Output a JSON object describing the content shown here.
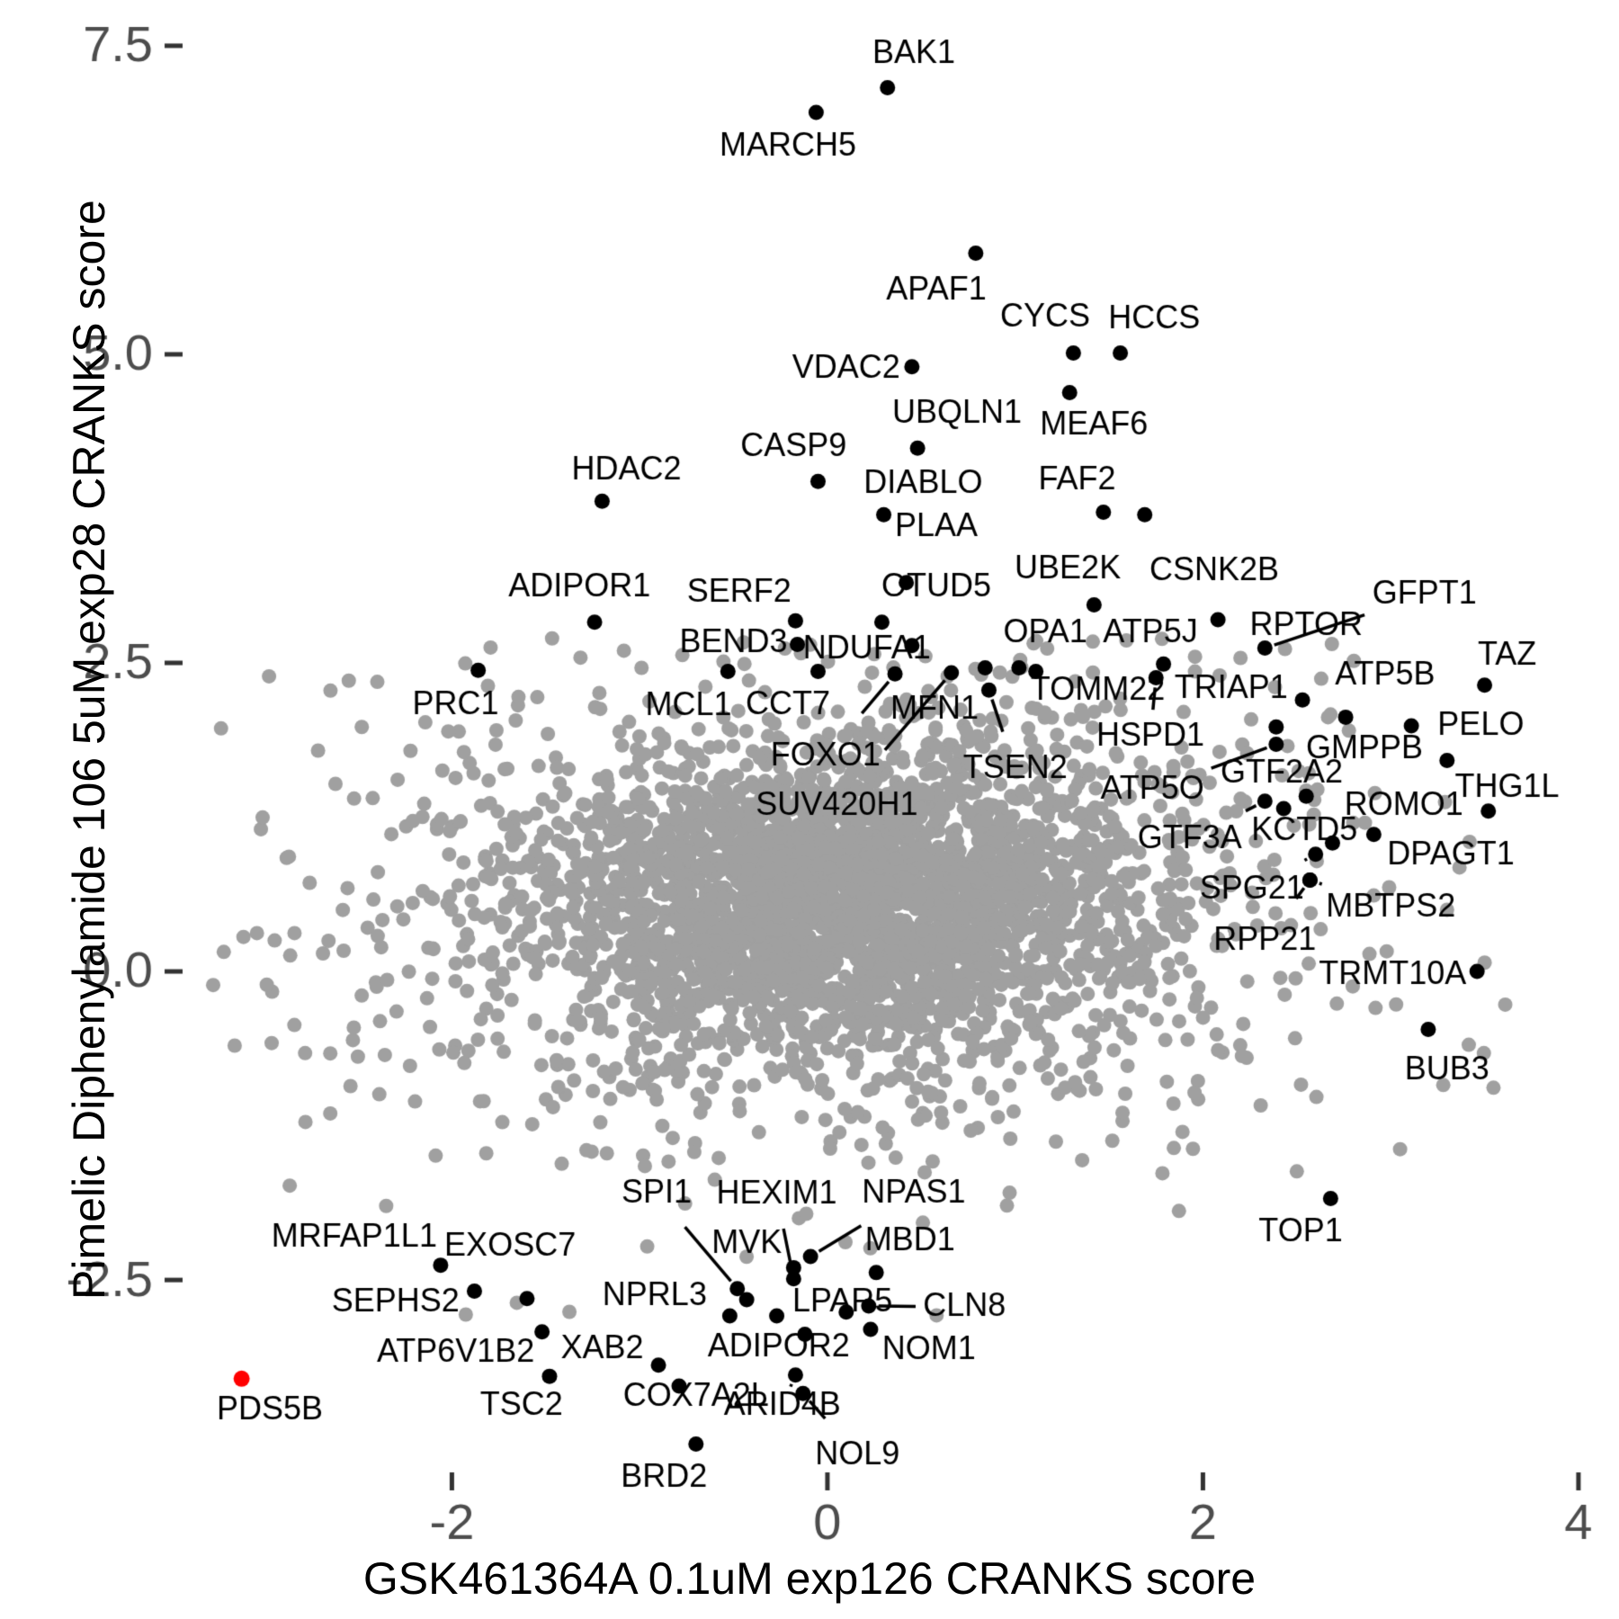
{
  "chart_data": {
    "type": "scatter",
    "title": "",
    "xlabel": "GSK461364A 0.1uM exp126 CRANKS score",
    "ylabel": "Pimelic Diphenylamide 106 5uM exp28 CRANKS score",
    "x_ticks": [
      {
        "v": -2,
        "label": "-2"
      },
      {
        "v": 0,
        "label": "0"
      },
      {
        "v": 2,
        "label": "2"
      },
      {
        "v": 4,
        "label": "4"
      }
    ],
    "y_ticks": [
      {
        "v": 7.5,
        "label": "7.5"
      },
      {
        "v": 5.0,
        "label": "5.0"
      },
      {
        "v": 2.5,
        "label": "2.5"
      },
      {
        "v": 0.0,
        "label": "0.0"
      },
      {
        "v": -2.5,
        "label": "-2.5"
      }
    ],
    "x_range": [
      -3.305,
      4.168
    ],
    "y_range": [
      -4.19,
      7.543
    ],
    "grid": false,
    "legend": "none",
    "colors": {
      "background": "#ffffff",
      "cloud_point": "#a0a0a0",
      "labeled_point": "#000000",
      "highlight_point": "#ff0000",
      "tick_label": "#4d4d4d",
      "tick_mark": "#333333",
      "axis_title": "#000000",
      "gene_label": "#000000"
    },
    "cloud": {
      "seed": 1234,
      "components": [
        {
          "n": 2400,
          "cx": 0.1,
          "cy": 0.62,
          "sx": 0.8,
          "sy": 0.6
        },
        {
          "n": 1150,
          "cx": 0.05,
          "cy": 0.48,
          "sx": 1.28,
          "sy": 0.95
        },
        {
          "n": 170,
          "cx": 0.0,
          "cy": 0.35,
          "sx": 1.95,
          "sy": 1.4
        }
      ],
      "clip": {
        "x": [
          -3.28,
          3.62
        ],
        "y": [
          -2.88,
          2.74
        ]
      },
      "strays": [
        [
          -3.11,
          0.28
        ],
        [
          -2.96,
          -0.58
        ],
        [
          -2.78,
          -1.22
        ],
        [
          -2.62,
          1.52
        ],
        [
          -2.88,
          0.92
        ],
        [
          3.28,
          -0.92
        ],
        [
          3.05,
          -1.44
        ],
        [
          2.5,
          -1.62
        ],
        [
          2.2,
          2.54
        ],
        [
          3.3,
          0.5
        ],
        [
          3.42,
          1.05
        ],
        [
          -2.35,
          -1.9
        ]
      ]
    },
    "labeled_points": [
      {
        "g": "BAK1",
        "x": 0.32,
        "y": 7.16,
        "lx": 0.46,
        "ly": 7.43
      },
      {
        "g": "MARCH5",
        "x": -0.06,
        "y": 6.96,
        "lx": -0.21,
        "ly": 6.68
      },
      {
        "g": "APAF1",
        "x": 0.79,
        "y": 5.82,
        "lx": 0.58,
        "ly": 5.52
      },
      {
        "g": "CYCS",
        "x": 1.31,
        "y": 5.01,
        "lx": 1.16,
        "ly": 5.3
      },
      {
        "g": "HCCS",
        "x": 1.56,
        "y": 5.01,
        "lx": 1.74,
        "ly": 5.28
      },
      {
        "g": "VDAC2",
        "x": 0.45,
        "y": 4.9,
        "lx": 0.1,
        "ly": 4.88
      },
      {
        "g": "MEAF6",
        "x": 1.29,
        "y": 4.69,
        "lx": 1.42,
        "ly": 4.42
      },
      {
        "g": "UBQLN1",
        "x": 0.48,
        "y": 4.24,
        "lx": 0.69,
        "ly": 4.52
      },
      {
        "g": "CASP9",
        "x": -0.05,
        "y": 3.97,
        "lx": -0.18,
        "ly": 4.25
      },
      {
        "g": "HDAC2",
        "x": -1.2,
        "y": 3.81,
        "lx": -1.07,
        "ly": 4.06
      },
      {
        "g": "DIABLO",
        "x": 0.3,
        "y": 3.7,
        "lx": 0.51,
        "ly": 3.95
      },
      {
        "g": "FAF2",
        "x": 1.47,
        "y": 3.72,
        "lx": 1.33,
        "ly": 3.98
      },
      {
        "g": "PLAA",
        "x": 0.42,
        "y": 3.15,
        "lx": 0.58,
        "ly": 3.6
      },
      {
        "g": "UBE2K",
        "x": 1.42,
        "y": 2.97,
        "lx": 1.28,
        "ly": 3.26
      },
      {
        "g": "CSNK2B",
        "x": 1.69,
        "y": 3.7,
        "lx": 2.06,
        "ly": 3.24
      },
      {
        "g": "ADIPOR1",
        "x": -1.24,
        "y": 2.83,
        "lx": -1.32,
        "ly": 3.11
      },
      {
        "g": "SERF2",
        "x": -0.17,
        "y": 2.84,
        "lx": -0.47,
        "ly": 3.07
      },
      {
        "g": "OTUD5",
        "x": 0.29,
        "y": 2.83,
        "lx": 0.58,
        "ly": 3.11
      },
      {
        "g": "BEND3",
        "x": -0.16,
        "y": 2.65,
        "lx": -0.5,
        "ly": 2.66
      },
      {
        "g": "NDUFA1",
        "x": 0.45,
        "y": 2.64,
        "lx": 0.21,
        "ly": 2.61
      },
      {
        "g": "MCL1",
        "x": -0.53,
        "y": 2.43,
        "lx": -0.74,
        "ly": 2.15
      },
      {
        "g": "CCT7",
        "x": -0.05,
        "y": 2.43,
        "lx": -0.21,
        "ly": 2.16
      },
      {
        "g": "FOXO1",
        "x": 0.36,
        "y": 2.41,
        "lx": -0.01,
        "ly": 1.74,
        "line": 1
      },
      {
        "g": "SUV420H1",
        "x": 0.66,
        "y": 2.42,
        "lx": 0.05,
        "ly": 1.34,
        "line": 1
      },
      {
        "g": "MFN1",
        "x": 0.84,
        "y": 2.46,
        "lx": 0.57,
        "ly": 2.12
      },
      {
        "g": "TSEN2",
        "x": 0.86,
        "y": 2.28,
        "lx": 1.0,
        "ly": 1.64,
        "line": 1
      },
      {
        "g": "OPA1",
        "x": 1.02,
        "y": 2.46,
        "lx": 1.16,
        "ly": 2.74
      },
      {
        "g": "TOMM22",
        "x": 1.11,
        "y": 2.43,
        "lx": 1.44,
        "ly": 2.27
      },
      {
        "g": "ATP5J",
        "x": 1.79,
        "y": 2.49,
        "lx": 1.72,
        "ly": 2.74
      },
      {
        "g": "HSPD1",
        "x": 1.75,
        "y": 2.38,
        "lx": 1.72,
        "ly": 1.9,
        "line": 1
      },
      {
        "g": "RPTOR",
        "x": 2.08,
        "y": 2.85,
        "lx": 2.55,
        "ly": 2.8
      },
      {
        "g": "GFPT1",
        "x": 2.33,
        "y": 2.62,
        "lx": 3.18,
        "ly": 3.05,
        "line": 1
      },
      {
        "g": "TRIAP1",
        "x": 2.53,
        "y": 2.2,
        "lx": 2.15,
        "ly": 2.29
      },
      {
        "g": "ATP5B",
        "x": 2.76,
        "y": 2.06,
        "lx": 2.97,
        "ly": 2.4
      },
      {
        "g": "TAZ",
        "x": 3.5,
        "y": 2.32,
        "lx": 3.62,
        "ly": 2.56
      },
      {
        "g": "PELO",
        "x": 3.3,
        "y": 1.71,
        "lx": 3.48,
        "ly": 1.99
      },
      {
        "g": "GMPPB",
        "x": 3.11,
        "y": 1.99,
        "lx": 2.86,
        "ly": 1.8
      },
      {
        "g": "THG1L",
        "x": 3.52,
        "y": 1.3,
        "lx": 3.62,
        "ly": 1.49
      },
      {
        "g": "ATP5O",
        "x": 2.39,
        "y": 1.84,
        "lx": 1.73,
        "ly": 1.47,
        "line": 1
      },
      {
        "g": "GTF2A2",
        "x": 2.39,
        "y": 1.98,
        "lx": 2.42,
        "ly": 1.6
      },
      {
        "g": "GTF3A",
        "x": 2.33,
        "y": 1.38,
        "lx": 1.93,
        "ly": 1.07,
        "line": 1
      },
      {
        "g": "KCTD5",
        "x": 2.55,
        "y": 1.42,
        "lx": 2.54,
        "ly": 1.14
      },
      {
        "g": "ROMO1",
        "x": 2.91,
        "y": 1.11,
        "lx": 3.07,
        "ly": 1.34
      },
      {
        "g": "DPAGT1",
        "x": 2.69,
        "y": 1.04,
        "lx": 3.32,
        "ly": 0.94
      },
      {
        "g": "SPG21",
        "x": 2.6,
        "y": 0.95,
        "lx": 2.26,
        "ly": 0.66,
        "line": 1
      },
      {
        "g": "MBTPS2",
        "x": 2.57,
        "y": 0.74,
        "lx": 3.0,
        "ly": 0.52,
        "line": 1
      },
      {
        "g": "RPP21",
        "x": 2.57,
        "y": 0.74,
        "lx": 2.33,
        "ly": 0.25,
        "line": 1
      },
      {
        "g": "TRMT10A",
        "x": 3.46,
        "y": 0.0,
        "lx": 3.01,
        "ly": -0.03
      },
      {
        "g": "BUB3",
        "x": 3.2,
        "y": -0.47,
        "lx": 3.3,
        "ly": -0.8
      },
      {
        "g": "TOP1",
        "x": 2.68,
        "y": -1.84,
        "lx": 2.52,
        "ly": -2.11
      },
      {
        "g": "PRC1",
        "x": -1.86,
        "y": 2.44,
        "lx": -1.98,
        "ly": 2.16
      },
      {
        "g": "MRFAP1L1",
        "x": -2.06,
        "y": -2.38,
        "lx": -2.52,
        "ly": -2.16
      },
      {
        "g": "EXOSC7",
        "x": -1.6,
        "y": -2.65,
        "lx": -1.69,
        "ly": -2.23
      },
      {
        "g": "SEPHS2",
        "x": -1.88,
        "y": -2.59,
        "lx": -2.3,
        "ly": -2.68
      },
      {
        "g": "SPI1",
        "x": -0.48,
        "y": -2.57,
        "lx": -0.91,
        "ly": -1.8,
        "line": 1
      },
      {
        "g": "HEXIM1",
        "x": -0.18,
        "y": -2.49,
        "lx": -0.27,
        "ly": -1.81,
        "line": 1
      },
      {
        "g": "NPAS1",
        "x": -0.09,
        "y": -2.31,
        "lx": 0.46,
        "ly": -1.8,
        "line": 1
      },
      {
        "g": "MVK",
        "x": -0.18,
        "y": -2.4,
        "lx": -0.43,
        "ly": -2.21
      },
      {
        "g": "MBD1",
        "x": 0.26,
        "y": -2.44,
        "lx": 0.44,
        "ly": -2.19
      },
      {
        "g": "NPRL3",
        "x": -0.43,
        "y": -2.66,
        "lx": -0.92,
        "ly": -2.63
      },
      {
        "g": "LPAR5",
        "x": 0.1,
        "y": -2.76,
        "lx": 0.08,
        "ly": -2.68
      },
      {
        "g": "CLN8",
        "x": 0.22,
        "y": -2.71,
        "lx": 0.73,
        "ly": -2.72,
        "line": 1
      },
      {
        "g": "NOM1",
        "x": 0.23,
        "y": -2.9,
        "lx": 0.54,
        "ly": -3.07
      },
      {
        "g": "ADIPOR2",
        "x": -0.12,
        "y": -2.94,
        "lx": -0.26,
        "ly": -3.05
      },
      {
        "g": "ARID4B",
        "x": -0.17,
        "y": -3.27,
        "lx": -0.24,
        "ly": -3.52,
        "line": 1
      },
      {
        "g": "NOL9",
        "x": -0.13,
        "y": -3.42,
        "lx": 0.16,
        "ly": -3.92,
        "line": 1
      },
      {
        "g": "XAB2",
        "x": -0.9,
        "y": -3.19,
        "lx": -1.2,
        "ly": -3.06
      },
      {
        "g": "COX7A2L",
        "x": -0.79,
        "y": -3.36,
        "lx": -0.7,
        "ly": -3.45
      },
      {
        "g": "BRD2",
        "x": -0.7,
        "y": -3.83,
        "lx": -0.87,
        "ly": -4.1
      },
      {
        "g": "TSC2",
        "x": -1.48,
        "y": -3.28,
        "lx": -1.63,
        "ly": -3.52
      },
      {
        "g": "ATP6V1B2",
        "x": -1.52,
        "y": -2.92,
        "lx": -1.98,
        "ly": -3.09
      }
    ],
    "extra_black_points": [
      [
        -0.52,
        -2.79
      ],
      [
        -0.27,
        -2.79
      ],
      [
        2.43,
        1.32
      ]
    ],
    "highlight_point": {
      "g": "PDS5B",
      "x": -3.12,
      "y": -3.3,
      "lx": -2.97,
      "ly": -3.56,
      "color": "#ff0000"
    }
  },
  "layout_labels": {
    "x_axis_title": "GSK461364A 0.1uM exp126 CRANKS score",
    "y_axis_title": "Pimelic Diphenylamide 106 5uM exp28 CRANKS score"
  }
}
